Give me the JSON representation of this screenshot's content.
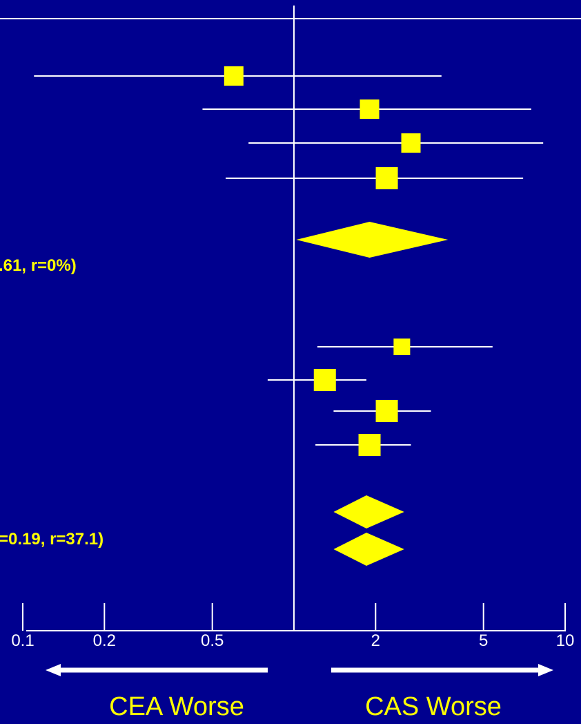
{
  "colors": {
    "background": "#00008f",
    "lines": "#ffffff",
    "markers": "#ffff00",
    "annotation_text": "#ffff00",
    "direction_text": "#ffff00"
  },
  "chart_data": {
    "type": "forest",
    "x_scale": "log",
    "xlim": [
      0.1,
      10
    ],
    "reference_value": 1,
    "x_ticks": [
      0.1,
      0.2,
      0.5,
      1,
      2,
      5,
      10
    ],
    "x_tick_labels": [
      "0.1",
      "0.2",
      "0.5",
      "",
      "2",
      "5",
      "10"
    ],
    "groups": [
      {
        "studies": [
          {
            "estimate": 0.6,
            "ci": [
              0.11,
              3.5
            ],
            "weight": "medium"
          },
          {
            "estimate": 1.9,
            "ci": [
              0.46,
              7.5
            ],
            "weight": "medium"
          },
          {
            "estimate": 2.7,
            "ci": [
              0.68,
              8.3
            ],
            "weight": "medium"
          },
          {
            "estimate": 2.2,
            "ci": [
              0.56,
              7.0
            ],
            "weight": "large"
          }
        ],
        "summary": {
          "estimate": 1.9,
          "ci": [
            1.02,
            3.7
          ]
        },
        "annotation": ".61, r=0%)"
      },
      {
        "studies": [
          {
            "estimate": 2.5,
            "ci": [
              1.22,
              5.4
            ],
            "weight": "small"
          },
          {
            "estimate": 1.3,
            "ci": [
              0.8,
              1.85
            ],
            "weight": "large"
          },
          {
            "estimate": 2.2,
            "ci": [
              1.4,
              3.2
            ],
            "weight": "large"
          },
          {
            "estimate": 1.9,
            "ci": [
              1.2,
              2.7
            ],
            "weight": "large"
          }
        ],
        "summary": [
          {
            "estimate": 1.85,
            "ci": [
              1.4,
              2.55
            ]
          },
          {
            "estimate": 1.85,
            "ci": [
              1.4,
              2.55
            ]
          }
        ],
        "annotation": "=0.19, r=37.1)"
      }
    ],
    "direction_labels": {
      "left": "CEA Worse",
      "right": "CAS Worse"
    }
  }
}
